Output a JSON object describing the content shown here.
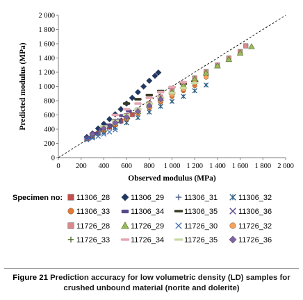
{
  "chart_data": {
    "type": "scatter",
    "xlabel": "Observed modulus (MPa)",
    "ylabel": "Predicted modulus (MPa)",
    "xlim": [
      0,
      2000
    ],
    "ylim": [
      0,
      2000
    ],
    "x_ticks": [
      "0",
      "200",
      "400",
      "600",
      "800",
      "1 000",
      "1 200",
      "1 400",
      "1 600",
      "1 800",
      "2 000"
    ],
    "y_ticks": [
      "0",
      "200",
      "400",
      "600",
      "800",
      "1 000",
      "1 200",
      "1 400",
      "1 600",
      "1 800",
      "2 000"
    ],
    "reference_line": "line of equality (dashed)",
    "grid": false,
    "legend_position": "bottom",
    "legend_title": "Specimen no:",
    "series": [
      {
        "name": "11306_28",
        "marker": "square",
        "color": "#c0504d",
        "x": [
          250,
          300,
          350,
          400,
          450,
          500,
          550,
          600,
          650,
          700
        ],
        "y": [
          265,
          300,
          340,
          385,
          430,
          470,
          515,
          560,
          605,
          650
        ]
      },
      {
        "name": "11306_29",
        "marker": "diamond",
        "color": "#1f3864",
        "x": [
          250,
          300,
          350,
          400,
          450,
          500,
          550,
          600,
          650,
          700,
          750,
          800,
          850,
          880
        ],
        "y": [
          290,
          340,
          410,
          475,
          540,
          610,
          680,
          760,
          840,
          920,
          1000,
          1080,
          1150,
          1195
        ]
      },
      {
        "name": "11306_31",
        "marker": "plus",
        "color": "#4a5f8a",
        "x": [
          250,
          300,
          350,
          400,
          450,
          500,
          550,
          600
        ],
        "y": [
          270,
          310,
          345,
          385,
          425,
          465,
          500,
          540
        ]
      },
      {
        "name": "11306_32",
        "marker": "star",
        "color": "#2f5f85",
        "x": [
          300,
          400,
          500,
          600,
          700,
          800,
          900,
          1000,
          1100,
          1200,
          1300
        ],
        "y": [
          290,
          355,
          420,
          490,
          560,
          640,
          720,
          790,
          860,
          940,
          1020
        ]
      },
      {
        "name": "11306_33",
        "marker": "circle",
        "color": "#e07b39",
        "x": [
          300,
          400,
          500,
          600,
          700,
          800,
          900,
          1000,
          1100,
          1200
        ],
        "y": [
          300,
          380,
          460,
          540,
          620,
          700,
          780,
          860,
          940,
          1010
        ]
      },
      {
        "name": "11306_34",
        "marker": "bar",
        "color": "#5a4a8a",
        "x": [
          260,
          320,
          380,
          440,
          500,
          560,
          620
        ],
        "y": [
          290,
          345,
          405,
          465,
          530,
          595,
          660
        ]
      },
      {
        "name": "11306_35",
        "marker": "dash",
        "color": "#3a3a24",
        "x": [
          600,
          700,
          800,
          900,
          1000,
          1100,
          1200
        ],
        "y": [
          760,
          820,
          880,
          935,
          990,
          1040,
          1070
        ]
      },
      {
        "name": "11306_36",
        "marker": "cross",
        "color": "#5a4a8a",
        "x": [
          260,
          330,
          400,
          470,
          540,
          610
        ],
        "y": [
          270,
          330,
          390,
          450,
          520,
          580
        ]
      },
      {
        "name": "11726_28",
        "marker": "square",
        "color": "#d98a8a",
        "x": [
          400,
          500,
          600,
          700,
          800,
          900,
          1000,
          1100,
          1200,
          1300,
          1400,
          1500,
          1600,
          1650
        ],
        "y": [
          420,
          500,
          590,
          670,
          760,
          850,
          940,
          1030,
          1120,
          1210,
          1300,
          1400,
          1490,
          1570
        ]
      },
      {
        "name": "11726_29",
        "marker": "triangle",
        "color": "#9bbb59",
        "x": [
          400,
          500,
          600,
          700,
          800,
          900,
          1000,
          1100,
          1200,
          1300,
          1400,
          1500,
          1600,
          1700
        ],
        "y": [
          400,
          480,
          570,
          650,
          740,
          830,
          920,
          1010,
          1100,
          1190,
          1290,
          1380,
          1470,
          1560
        ]
      },
      {
        "name": "11726_30",
        "marker": "x",
        "color": "#3f6fb5",
        "x": [
          250,
          300,
          350,
          400,
          450,
          500
        ],
        "y": [
          250,
          275,
          300,
          330,
          360,
          390
        ]
      },
      {
        "name": "11726_32",
        "marker": "circle",
        "color": "#f4a460",
        "x": [
          400,
          500,
          600,
          700,
          800,
          900,
          1000,
          1100,
          1200,
          1300
        ],
        "y": [
          390,
          470,
          550,
          630,
          710,
          800,
          880,
          960,
          1050,
          1130
        ]
      },
      {
        "name": "11726_33",
        "marker": "plus",
        "color": "#4e6b2a",
        "x": [
          300,
          400,
          500,
          600,
          700
        ],
        "y": [
          310,
          390,
          480,
          560,
          640
        ]
      },
      {
        "name": "11726_34",
        "marker": "dash",
        "color": "#e6a7b3",
        "x": [
          500,
          600,
          700,
          800,
          900,
          1000,
          1100
        ],
        "y": [
          600,
          680,
          760,
          840,
          920,
          990,
          1060
        ]
      },
      {
        "name": "11726_35",
        "marker": "line",
        "color": "#c9d9a5",
        "x": [
          400,
          500,
          600,
          700,
          800,
          900,
          1000,
          1100,
          1200
        ],
        "y": [
          440,
          520,
          600,
          680,
          760,
          840,
          910,
          980,
          1050
        ]
      },
      {
        "name": "11726_36",
        "marker": "diamond",
        "color": "#8064a2",
        "x": [
          300,
          400,
          500,
          600,
          700,
          800,
          900
        ],
        "y": [
          330,
          410,
          490,
          570,
          650,
          730,
          820
        ]
      }
    ]
  },
  "caption": {
    "label": "Figure 21",
    "text": "Prediction accuracy for low volumetric density (LD) samples for crushed unbound material (norite and dolerite)"
  }
}
